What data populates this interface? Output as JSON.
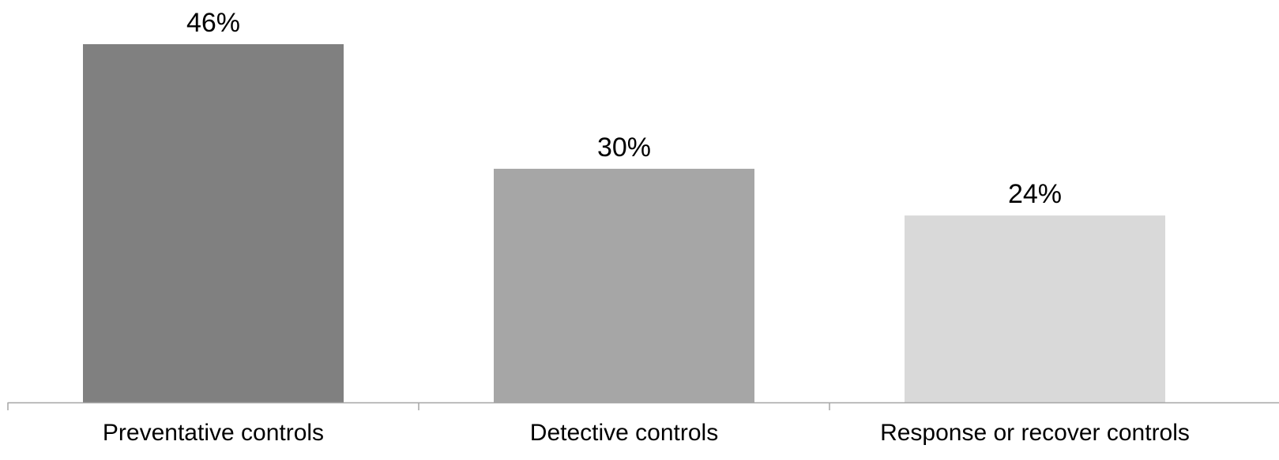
{
  "chart_data": {
    "type": "bar",
    "categories": [
      "Preventative controls",
      "Detective controls",
      "Response or recover controls"
    ],
    "values": [
      46,
      30,
      24
    ],
    "data_labels": [
      "46%",
      "30%",
      "24%"
    ],
    "colors": [
      "#808080",
      "#a6a6a6",
      "#d9d9d9"
    ],
    "axis_color": "#a6a6a6",
    "title": "",
    "xlabel": "",
    "ylabel": "",
    "ylim": [
      0,
      46
    ],
    "grid": false,
    "legend": "none"
  }
}
